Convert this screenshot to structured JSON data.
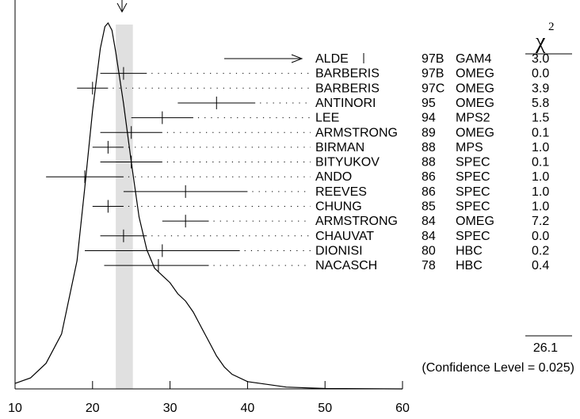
{
  "chart_data": {
    "type": "ideogram",
    "xlim": [
      10,
      60
    ],
    "xticks": [
      10,
      20,
      30,
      40,
      50,
      60
    ],
    "average": 24,
    "average_band": [
      23.0,
      25.2
    ],
    "chi2_header": "χ",
    "chi2_superscript": "2",
    "chi2_total": "26.1",
    "confidence_text": "(Confidence Level = 0.025)",
    "measurements": [
      {
        "author": "ALDE",
        "year": "97B",
        "tech": "GAM4",
        "chi2": "3.0",
        "arrow_only": true
      },
      {
        "author": "BARBERIS",
        "year": "97B",
        "tech": "OMEG",
        "chi2": "0.0",
        "value": 24,
        "low": 21,
        "high": 27
      },
      {
        "author": "BARBERIS",
        "year": "97C",
        "tech": "OMEG",
        "chi2": "3.9",
        "value": 20,
        "low": 18,
        "high": 22
      },
      {
        "author": "ANTINORI",
        "year": "95",
        "tech": "OMEG",
        "chi2": "5.8",
        "value": 36,
        "low": 31,
        "high": 41
      },
      {
        "author": "LEE",
        "year": "94",
        "tech": "MPS2",
        "chi2": "1.5",
        "value": 29,
        "low": 25,
        "high": 33
      },
      {
        "author": "ARMSTRONG",
        "year": "89",
        "tech": "OMEG",
        "chi2": "0.1",
        "value": 25,
        "low": 21,
        "high": 29
      },
      {
        "author": "BIRMAN",
        "year": "88",
        "tech": "MPS",
        "chi2": "1.0",
        "value": 22,
        "low": 20,
        "high": 24
      },
      {
        "author": "BITYUKOV",
        "year": "88",
        "tech": "SPEC",
        "chi2": "0.1",
        "value": 25,
        "low": 21,
        "high": 29
      },
      {
        "author": "ANDO",
        "year": "86",
        "tech": "SPEC",
        "chi2": "1.0",
        "value": 19,
        "low": 14,
        "high": 24
      },
      {
        "author": "REEVES",
        "year": "86",
        "tech": "SPEC",
        "chi2": "1.0",
        "value": 32,
        "low": 24,
        "high": 40
      },
      {
        "author": "CHUNG",
        "year": "85",
        "tech": "SPEC",
        "chi2": "1.0",
        "value": 22,
        "low": 20,
        "high": 24
      },
      {
        "author": "ARMSTRONG",
        "year": "84",
        "tech": "OMEG",
        "chi2": "7.2",
        "value": 32,
        "low": 29,
        "high": 35
      },
      {
        "author": "CHAUVAT",
        "year": "84",
        "tech": "SPEC",
        "chi2": "0.0",
        "value": 24,
        "low": 21,
        "high": 27
      },
      {
        "author": "DIONISI",
        "year": "80",
        "tech": "HBC",
        "chi2": "0.2",
        "value": 29,
        "low": 19,
        "high": 39
      },
      {
        "author": "NACASCH",
        "year": "78",
        "tech": "HBC",
        "chi2": "0.4",
        "value": 28.5,
        "low": 21.5,
        "high": 35
      }
    ],
    "ideogram_curve": [
      [
        10,
        0.015
      ],
      [
        12,
        0.03
      ],
      [
        14,
        0.07
      ],
      [
        16,
        0.15
      ],
      [
        18,
        0.35
      ],
      [
        19,
        0.55
      ],
      [
        20,
        0.76
      ],
      [
        21,
        0.93
      ],
      [
        21.6,
        0.99
      ],
      [
        22,
        1.0
      ],
      [
        22.5,
        0.98
      ],
      [
        23,
        0.92
      ],
      [
        24,
        0.78
      ],
      [
        25,
        0.62
      ],
      [
        26,
        0.47
      ],
      [
        27,
        0.38
      ],
      [
        28,
        0.33
      ],
      [
        29,
        0.31
      ],
      [
        30,
        0.29
      ],
      [
        31,
        0.26
      ],
      [
        32,
        0.24
      ],
      [
        33,
        0.21
      ],
      [
        34,
        0.17
      ],
      [
        35,
        0.13
      ],
      [
        36,
        0.09
      ],
      [
        37,
        0.06
      ],
      [
        38,
        0.04
      ],
      [
        40,
        0.02
      ],
      [
        45,
        0.005
      ],
      [
        50,
        0.001
      ],
      [
        60,
        0.0
      ]
    ]
  }
}
